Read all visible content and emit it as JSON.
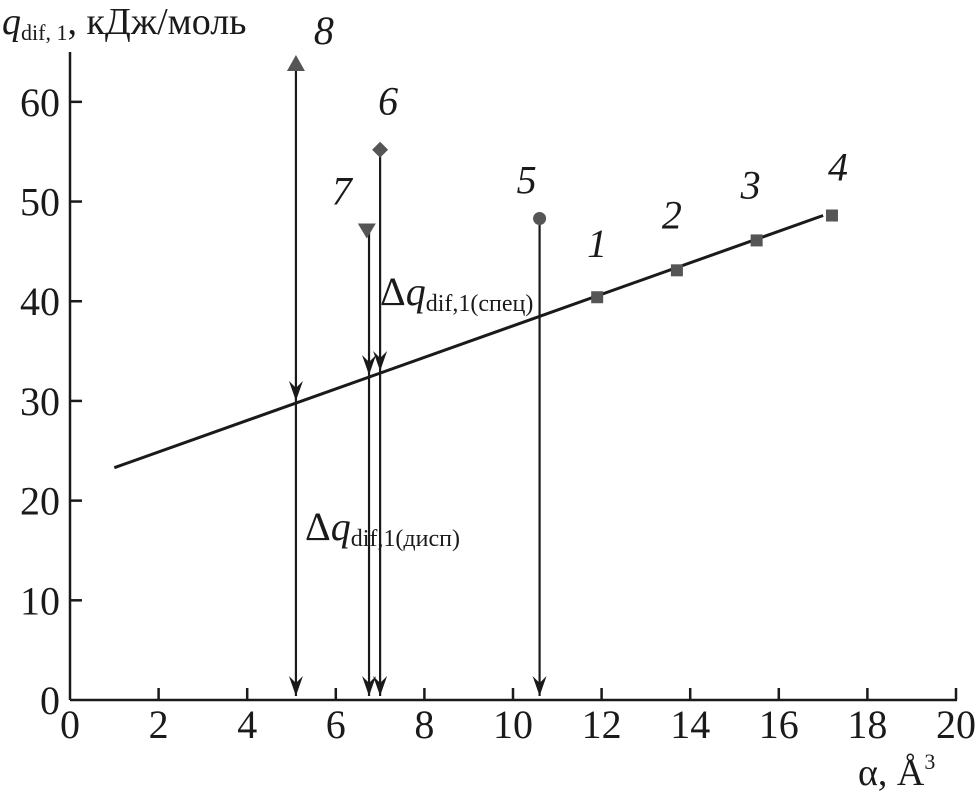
{
  "chart_data": {
    "type": "scatter",
    "ylabel": {
      "main": "q",
      "sub": "dif, 1",
      "unit": ", кДж/моль"
    },
    "xlabel": {
      "main": "α, Å",
      "sup": "3"
    },
    "xlim": [
      0,
      20
    ],
    "ylim": [
      0,
      65
    ],
    "xticks": [
      "0",
      "2",
      "4",
      "6",
      "8",
      "10",
      "12",
      "14",
      "16",
      "18",
      "20"
    ],
    "yticks": [
      "0",
      "10",
      "20",
      "30",
      "40",
      "50",
      "60"
    ],
    "grid": false,
    "fit_line": {
      "x": [
        1.0,
        17.0
      ],
      "y": [
        23.3,
        48.6
      ]
    },
    "series": [
      {
        "marker": "square",
        "color": "#555555",
        "points": [
          {
            "label": "1",
            "x": 11.9,
            "y": 40.4
          },
          {
            "label": "2",
            "x": 13.7,
            "y": 43.1
          },
          {
            "label": "3",
            "x": 15.5,
            "y": 46.1
          },
          {
            "label": "4",
            "x": 17.2,
            "y": 48.6
          }
        ]
      },
      {
        "marker": "circle",
        "color": "#555555",
        "points": [
          {
            "label": "5",
            "x": 10.6,
            "y": 48.3
          }
        ]
      },
      {
        "marker": "diamond",
        "color": "#555555",
        "points": [
          {
            "label": "6",
            "x": 7.0,
            "y": 55.2
          }
        ]
      },
      {
        "marker": "triangle-down",
        "color": "#555555",
        "points": [
          {
            "label": "7",
            "x": 6.7,
            "y": 47.1
          }
        ]
      },
      {
        "marker": "triangle-up",
        "color": "#555555",
        "points": [
          {
            "label": "8",
            "x": 5.1,
            "y": 63.8
          }
        ]
      }
    ],
    "arrows": [
      {
        "x": 5.1,
        "y_from": 64.0,
        "y_to": 0,
        "mid_head_y": 30.0
      },
      {
        "x": 6.75,
        "y_from": 47.1,
        "y_to": 0,
        "mid_head_y": 32.6
      },
      {
        "x": 7.0,
        "y_from": 55.2,
        "y_to": 0,
        "mid_head_y": 33.0
      },
      {
        "x": 10.6,
        "y_from": 48.3,
        "y_to": 0
      }
    ],
    "annotations": {
      "spec": {
        "delta": "Δ",
        "q": "q",
        "sub": "dif,1(спец)"
      },
      "disp": {
        "delta": "Δ",
        "q": "q",
        "sub": "dif,1(дисп)"
      }
    }
  }
}
